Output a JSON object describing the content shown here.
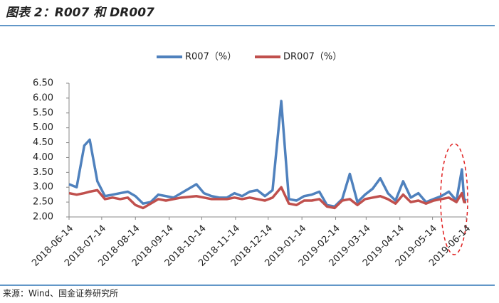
{
  "chart_data": {
    "type": "line",
    "title": "图表 2：R007 和 DR007",
    "source": "来源：Wind、国金证券研究所",
    "x": [
      "2018-06-14",
      "2018-06-21",
      "2018-06-28",
      "2018-07-03",
      "2018-07-10",
      "2018-07-17",
      "2018-07-24",
      "2018-07-31",
      "2018-08-07",
      "2018-08-14",
      "2018-08-21",
      "2018-08-28",
      "2018-09-04",
      "2018-09-11",
      "2018-09-18",
      "2018-09-25",
      "2018-10-09",
      "2018-10-16",
      "2018-10-23",
      "2018-10-30",
      "2018-11-06",
      "2018-11-13",
      "2018-11-20",
      "2018-11-27",
      "2018-12-04",
      "2018-12-11",
      "2018-12-18",
      "2018-12-26",
      "2019-01-02",
      "2019-01-09",
      "2019-01-16",
      "2019-01-23",
      "2019-01-30",
      "2019-02-06",
      "2019-02-13",
      "2019-02-20",
      "2019-02-27",
      "2019-03-06",
      "2019-03-13",
      "2019-03-20",
      "2019-03-27",
      "2019-04-03",
      "2019-04-10",
      "2019-04-17",
      "2019-04-24",
      "2019-05-01",
      "2019-05-08",
      "2019-05-15",
      "2019-05-22",
      "2019-05-29",
      "2019-06-05",
      "2019-06-10",
      "2019-06-12",
      "2019-06-14"
    ],
    "series": [
      {
        "name": "R007（%）",
        "color": "#4f81bd",
        "values": [
          3.1,
          3.0,
          4.4,
          4.6,
          3.2,
          2.7,
          2.75,
          2.8,
          2.85,
          2.7,
          2.45,
          2.5,
          2.75,
          2.7,
          2.65,
          2.8,
          3.1,
          2.8,
          2.7,
          2.65,
          2.65,
          2.8,
          2.7,
          2.85,
          2.9,
          2.7,
          2.9,
          5.9,
          2.6,
          2.55,
          2.7,
          2.75,
          2.85,
          2.4,
          2.35,
          2.6,
          3.45,
          2.5,
          2.75,
          2.95,
          3.3,
          2.8,
          2.55,
          3.2,
          2.65,
          2.8,
          2.5,
          2.6,
          2.7,
          2.85,
          2.55,
          3.6,
          2.6,
          2.55
        ]
      },
      {
        "name": "DR007（%）",
        "color": "#c0504d",
        "values": [
          2.8,
          2.75,
          2.8,
          2.85,
          2.9,
          2.6,
          2.65,
          2.6,
          2.65,
          2.4,
          2.3,
          2.45,
          2.6,
          2.55,
          2.6,
          2.65,
          2.7,
          2.65,
          2.6,
          2.6,
          2.6,
          2.65,
          2.6,
          2.65,
          2.6,
          2.55,
          2.65,
          3.0,
          2.45,
          2.4,
          2.55,
          2.55,
          2.6,
          2.35,
          2.3,
          2.55,
          2.6,
          2.4,
          2.6,
          2.65,
          2.7,
          2.6,
          2.45,
          2.75,
          2.5,
          2.55,
          2.45,
          2.55,
          2.6,
          2.65,
          2.5,
          2.8,
          2.5,
          2.5
        ]
      }
    ],
    "xlim": [
      "2018-06-14",
      "2019-06-14"
    ],
    "xticks": [
      "2018-06-14",
      "2018-07-14",
      "2018-08-14",
      "2018-09-14",
      "2018-10-14",
      "2018-11-14",
      "2018-12-14",
      "2019-01-14",
      "2019-02-14",
      "2019-03-14",
      "2019-04-14",
      "2019-05-14",
      "2019-06-14"
    ],
    "ylim": [
      2,
      6.5
    ],
    "yticks": [
      {
        "value": 2,
        "label": "2.00"
      },
      {
        "value": 2.5,
        "label": "2.50"
      },
      {
        "value": 3,
        "label": "3.00"
      },
      {
        "value": 3.5,
        "label": "3.50"
      },
      {
        "value": 4,
        "label": "4.00"
      },
      {
        "value": 4.5,
        "label": "4.50"
      },
      {
        "value": 5,
        "label": "5.00"
      },
      {
        "value": 5.5,
        "label": "5.50"
      },
      {
        "value": 6,
        "label": "6.00"
      },
      {
        "value": 6.5,
        "label": "6.50"
      }
    ],
    "legend": "top"
  }
}
